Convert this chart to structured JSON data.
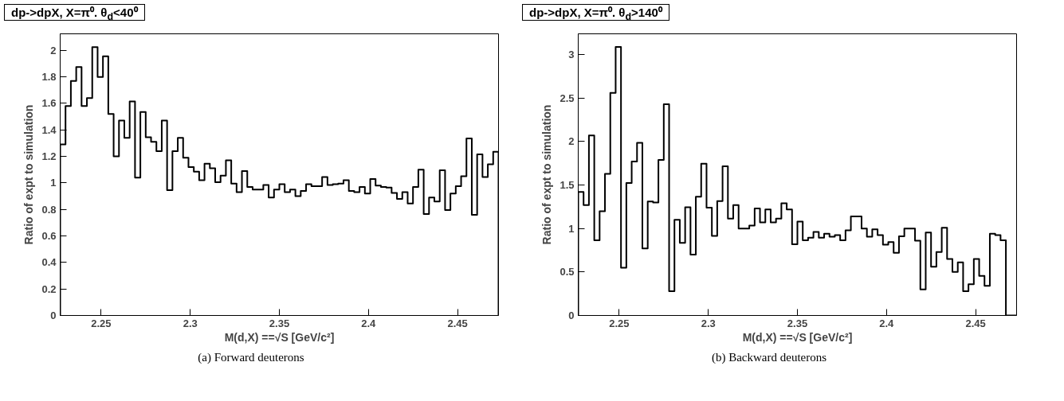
{
  "chart_data": [
    {
      "type": "histogram",
      "title": "dp->dpX, X=π⁰. θ$_{d}$<40⁰",
      "xlabel": "M(d,X) ==√S [GeV/c²]",
      "ylabel": "Ratio of expt to simulation",
      "annotations": [
        "(a)  Forward deuterons"
      ],
      "color": "#000000",
      "grid": false,
      "xlim": [
        2.227,
        2.473
      ],
      "ylim": [
        0,
        2.125
      ],
      "xticks": [
        2.25,
        2.3,
        2.35,
        2.4,
        2.45
      ],
      "yticks": [
        0,
        0.2,
        0.4,
        0.6,
        0.8,
        1,
        1.2,
        1.4,
        1.6,
        1.8,
        2
      ],
      "bins": [
        2.227,
        2.23,
        2.233,
        2.236,
        2.239,
        2.242,
        2.245,
        2.248,
        2.251,
        2.254,
        2.257,
        2.26,
        2.263,
        2.266,
        2.269,
        2.272,
        2.275,
        2.278,
        2.281,
        2.284,
        2.287,
        2.29,
        2.293,
        2.296,
        2.299,
        2.302,
        2.305,
        2.308,
        2.311,
        2.314,
        2.317,
        2.32,
        2.323,
        2.326,
        2.329,
        2.332,
        2.335,
        2.338,
        2.341,
        2.344,
        2.347,
        2.35,
        2.353,
        2.356,
        2.359,
        2.362,
        2.365,
        2.368,
        2.371,
        2.374,
        2.377,
        2.38,
        2.383,
        2.386,
        2.389,
        2.392,
        2.395,
        2.398,
        2.401,
        2.404,
        2.407,
        2.41,
        2.413,
        2.416,
        2.419,
        2.422,
        2.425,
        2.428,
        2.431,
        2.434,
        2.437,
        2.44,
        2.443,
        2.446,
        2.449,
        2.452,
        2.455,
        2.458,
        2.461,
        2.464,
        2.467,
        2.47,
        2.473
      ],
      "values": [
        1.29,
        1.58,
        1.77,
        1.875,
        1.58,
        1.64,
        2.025,
        1.8,
        1.955,
        1.52,
        1.2,
        1.47,
        1.34,
        1.615,
        1.04,
        1.535,
        1.345,
        1.31,
        1.24,
        1.47,
        0.945,
        1.24,
        1.34,
        1.19,
        1.12,
        1.085,
        1.02,
        1.145,
        1.11,
        1.005,
        1.055,
        1.17,
        0.995,
        0.93,
        1.09,
        0.97,
        0.95,
        0.95,
        0.985,
        0.89,
        0.95,
        0.99,
        0.93,
        0.95,
        0.9,
        0.94,
        0.99,
        0.975,
        0.975,
        1.045,
        0.985,
        0.99,
        0.995,
        1.02,
        0.94,
        0.93,
        0.97,
        0.92,
        1.03,
        0.98,
        0.97,
        0.965,
        0.925,
        0.88,
        0.93,
        0.845,
        0.97,
        1.1,
        0.765,
        0.89,
        0.86,
        1.095,
        0.795,
        0.92,
        0.975,
        1.05,
        1.335,
        0.76,
        1.215,
        1.045,
        1.14,
        1.235
      ]
    },
    {
      "type": "histogram",
      "title": "dp->dpX, X=π⁰. θ$_{d}$>140⁰",
      "xlabel": "M(d,X) ==√S [GeV/c²]",
      "ylabel": "Ratio of expt to simulation",
      "annotations": [
        "(b)  Backward deuterons"
      ],
      "color": "#000000",
      "grid": false,
      "xlim": [
        2.227,
        2.473
      ],
      "ylim": [
        0,
        3.24
      ],
      "xticks": [
        2.25,
        2.3,
        2.35,
        2.4,
        2.45
      ],
      "yticks": [
        0,
        0.5,
        1,
        1.5,
        2,
        2.5,
        3
      ],
      "bins": [
        2.227,
        2.23,
        2.233,
        2.236,
        2.239,
        2.242,
        2.245,
        2.248,
        2.251,
        2.254,
        2.257,
        2.26,
        2.263,
        2.266,
        2.269,
        2.272,
        2.275,
        2.278,
        2.281,
        2.284,
        2.287,
        2.29,
        2.293,
        2.296,
        2.299,
        2.302,
        2.305,
        2.308,
        2.311,
        2.314,
        2.317,
        2.32,
        2.323,
        2.326,
        2.329,
        2.332,
        2.335,
        2.338,
        2.341,
        2.344,
        2.347,
        2.35,
        2.353,
        2.356,
        2.359,
        2.362,
        2.365,
        2.368,
        2.371,
        2.374,
        2.377,
        2.38,
        2.383,
        2.386,
        2.389,
        2.392,
        2.395,
        2.398,
        2.401,
        2.404,
        2.407,
        2.41,
        2.413,
        2.416,
        2.419,
        2.422,
        2.425,
        2.428,
        2.431,
        2.434,
        2.437,
        2.44,
        2.443,
        2.446,
        2.449,
        2.452,
        2.455,
        2.458,
        2.461,
        2.464,
        2.467,
        2.47,
        2.473
      ],
      "values": [
        1.42,
        1.27,
        2.07,
        0.865,
        1.2,
        1.63,
        2.56,
        3.09,
        0.55,
        1.525,
        1.77,
        1.985,
        0.77,
        1.31,
        1.3,
        1.79,
        2.43,
        0.28,
        1.1,
        0.835,
        1.245,
        0.7,
        1.365,
        1.745,
        1.24,
        0.915,
        1.315,
        1.715,
        1.115,
        1.27,
        1.0,
        1.0,
        1.035,
        1.23,
        1.07,
        1.22,
        1.07,
        1.115,
        1.29,
        1.22,
        0.82,
        1.08,
        0.865,
        0.895,
        0.96,
        0.895,
        0.94,
        0.905,
        0.925,
        0.865,
        0.98,
        1.14,
        1.14,
        1.0,
        0.905,
        0.99,
        0.925,
        0.815,
        0.845,
        0.72,
        0.91,
        1.0,
        1.0,
        0.86,
        0.3,
        0.955,
        0.56,
        0.73,
        1.01,
        0.65,
        0.5,
        0.61,
        0.28,
        0.36,
        0.65,
        0.455,
        0.34,
        0.94,
        0.925,
        0.865,
        0,
        0
      ]
    }
  ]
}
